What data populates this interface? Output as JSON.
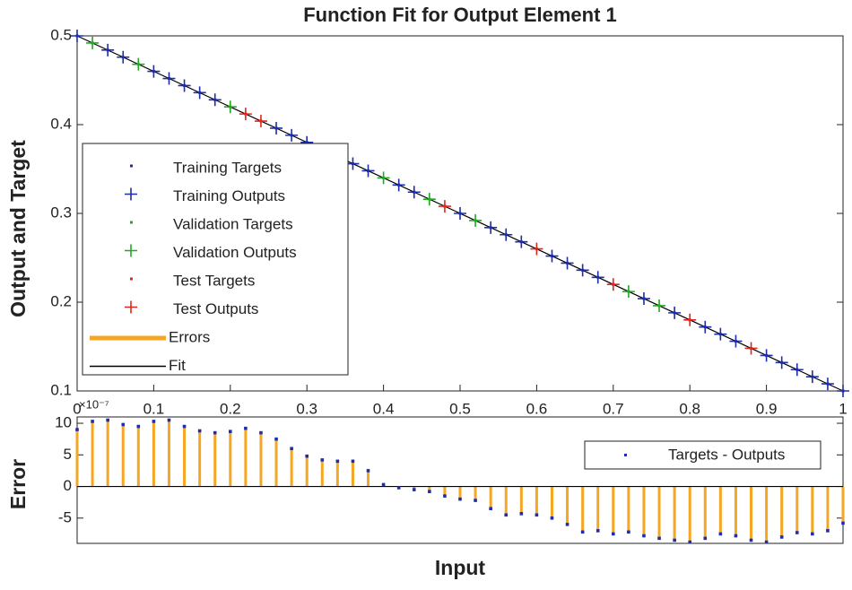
{
  "chart_data": [
    {
      "type": "line",
      "title": "Function Fit for Output Element 1",
      "ylabel": "Output and Target",
      "xlim": [
        0,
        1
      ],
      "ylim": [
        0.1,
        0.5
      ],
      "xticks": [
        0,
        0.1,
        0.2,
        0.3,
        0.4,
        0.5,
        0.6,
        0.7,
        0.8,
        0.9,
        1
      ],
      "yticks": [
        0.1,
        0.2,
        0.3,
        0.4,
        0.5
      ],
      "legend": "lower-left",
      "series": [
        {
          "name": "Training Targets",
          "color": "#1f2ea8",
          "marker": "dot",
          "x": [
            0,
            0.04,
            0.06,
            0.1,
            0.12,
            0.14,
            0.16,
            0.18,
            0.26,
            0.28,
            0.3,
            0.32,
            0.34,
            0.36,
            0.38,
            0.42,
            0.44,
            0.5,
            0.54,
            0.56,
            0.58,
            0.62,
            0.64,
            0.66,
            0.68,
            0.74,
            0.78,
            0.82,
            0.84,
            0.86,
            0.9,
            0.92,
            0.94,
            0.96,
            0.98,
            1
          ],
          "values": [
            0.5,
            0.484,
            0.476,
            0.46,
            0.452,
            0.444,
            0.436,
            0.428,
            0.396,
            0.388,
            0.38,
            0.372,
            0.364,
            0.356,
            0.348,
            0.332,
            0.324,
            0.3,
            0.284,
            0.276,
            0.268,
            0.252,
            0.244,
            0.236,
            0.228,
            0.204,
            0.188,
            0.172,
            0.164,
            0.156,
            0.14,
            0.132,
            0.124,
            0.116,
            0.108,
            0.1
          ]
        },
        {
          "name": "Training Outputs",
          "color": "#1f2ea8",
          "marker": "plus",
          "x": [
            0,
            0.04,
            0.06,
            0.1,
            0.12,
            0.14,
            0.16,
            0.18,
            0.26,
            0.28,
            0.3,
            0.32,
            0.34,
            0.36,
            0.38,
            0.42,
            0.44,
            0.5,
            0.54,
            0.56,
            0.58,
            0.62,
            0.64,
            0.66,
            0.68,
            0.74,
            0.78,
            0.82,
            0.84,
            0.86,
            0.9,
            0.92,
            0.94,
            0.96,
            0.98,
            1
          ],
          "values": [
            0.5,
            0.484,
            0.476,
            0.46,
            0.452,
            0.444,
            0.436,
            0.428,
            0.396,
            0.388,
            0.38,
            0.372,
            0.364,
            0.356,
            0.348,
            0.332,
            0.324,
            0.3,
            0.284,
            0.276,
            0.268,
            0.252,
            0.244,
            0.236,
            0.228,
            0.204,
            0.188,
            0.172,
            0.164,
            0.156,
            0.14,
            0.132,
            0.124,
            0.116,
            0.108,
            0.1
          ]
        },
        {
          "name": "Validation Targets",
          "color": "#22a822",
          "marker": "dot",
          "x": [
            0.02,
            0.08,
            0.2,
            0.4,
            0.46,
            0.52,
            0.72,
            0.76
          ],
          "values": [
            0.492,
            0.468,
            0.42,
            0.34,
            0.316,
            0.292,
            0.212,
            0.196
          ]
        },
        {
          "name": "Validation Outputs",
          "color": "#22a822",
          "marker": "plus",
          "x": [
            0.02,
            0.08,
            0.2,
            0.4,
            0.46,
            0.52,
            0.72,
            0.76
          ],
          "values": [
            0.492,
            0.468,
            0.42,
            0.34,
            0.316,
            0.292,
            0.212,
            0.196
          ]
        },
        {
          "name": "Test Targets",
          "color": "#e0261b",
          "marker": "dot",
          "x": [
            0.22,
            0.24,
            0.48,
            0.6,
            0.7,
            0.8,
            0.88
          ],
          "values": [
            0.412,
            0.404,
            0.308,
            0.26,
            0.22,
            0.18,
            0.148
          ]
        },
        {
          "name": "Test Outputs",
          "color": "#e0261b",
          "marker": "plus",
          "x": [
            0.22,
            0.24,
            0.48,
            0.6,
            0.7,
            0.8,
            0.88
          ],
          "values": [
            0.412,
            0.404,
            0.308,
            0.26,
            0.22,
            0.18,
            0.148
          ]
        },
        {
          "name": "Errors",
          "color": "#f5a623",
          "marker": "thick-line"
        },
        {
          "name": "Fit",
          "color": "#000000",
          "marker": "line",
          "x": [
            0,
            1
          ],
          "values": [
            0.5,
            0.1
          ]
        }
      ]
    },
    {
      "type": "stem",
      "ylabel": "Error",
      "xlabel": "Input",
      "y_exponent_label": "×10⁻⁷",
      "xlim": [
        0,
        1
      ],
      "ylim": [
        -9,
        11
      ],
      "yticks": [
        -5,
        0,
        5,
        10
      ],
      "legend": "upper-right",
      "stem_color": "#f5a623",
      "series": [
        {
          "name": "Targets - Outputs",
          "color": "#1f2ea8",
          "x": [
            0,
            0.02,
            0.04,
            0.06,
            0.08,
            0.1,
            0.12,
            0.14,
            0.16,
            0.18,
            0.2,
            0.22,
            0.24,
            0.26,
            0.28,
            0.3,
            0.32,
            0.34,
            0.36,
            0.38,
            0.4,
            0.42,
            0.44,
            0.46,
            0.48,
            0.5,
            0.52,
            0.54,
            0.56,
            0.58,
            0.6,
            0.62,
            0.64,
            0.66,
            0.68,
            0.7,
            0.72,
            0.74,
            0.76,
            0.78,
            0.8,
            0.82,
            0.84,
            0.86,
            0.88,
            0.9,
            0.92,
            0.94,
            0.96,
            0.98,
            1
          ],
          "values": [
            9,
            10.3,
            10.5,
            9.8,
            9.5,
            10.3,
            10.5,
            9.5,
            8.8,
            8.5,
            8.7,
            9.2,
            8.5,
            7.5,
            6,
            4.8,
            4.2,
            4,
            4,
            2.5,
            0.3,
            -0.2,
            -0.5,
            -0.8,
            -1.5,
            -2,
            -2.2,
            -3.5,
            -4.5,
            -4.3,
            -4.5,
            -5,
            -6,
            -7.2,
            -7,
            -7.5,
            -7.2,
            -7.8,
            -8.2,
            -8.5,
            -8.8,
            -8.2,
            -7.5,
            -7.8,
            -8.5,
            -8.8,
            -8,
            -7.3,
            -7.5,
            -7,
            -5.8
          ]
        }
      ]
    }
  ]
}
